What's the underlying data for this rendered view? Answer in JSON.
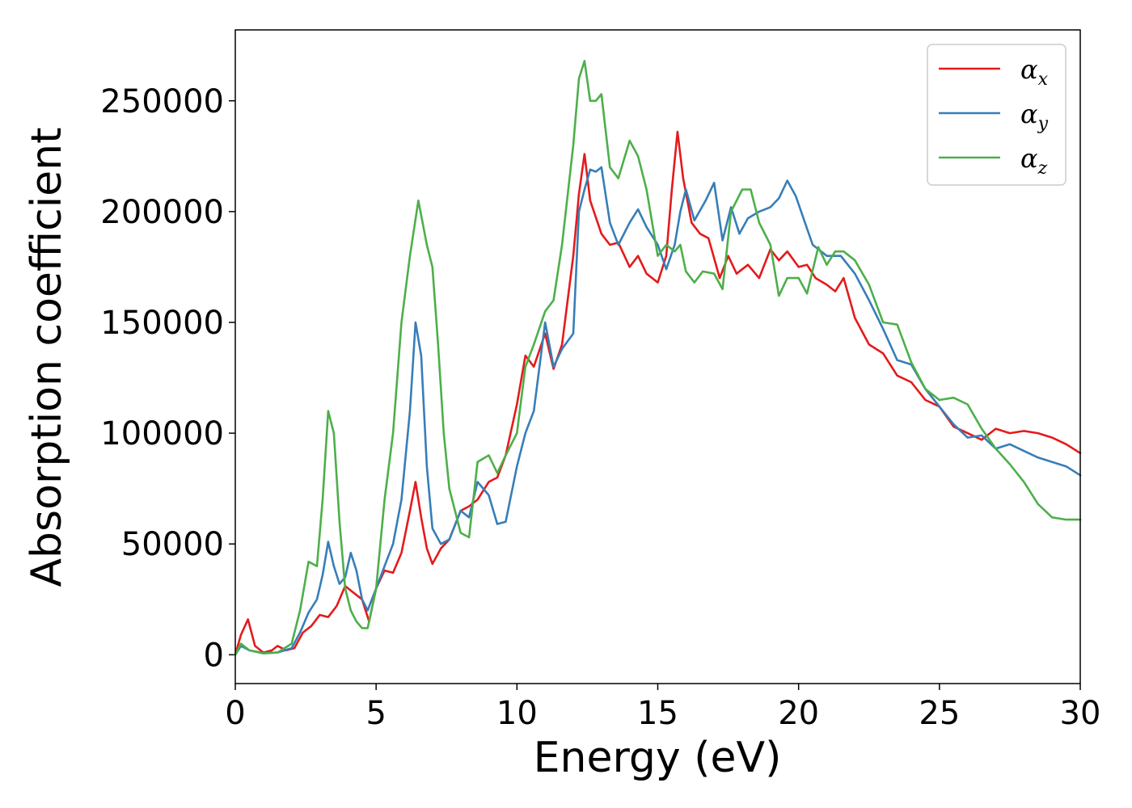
{
  "chart_data": {
    "type": "line",
    "title": "",
    "xlabel": "Energy (eV)",
    "ylabel": "Absorption coefficient",
    "xlim": [
      0,
      30
    ],
    "ylim": [
      -13000,
      282000
    ],
    "xticks": [
      0,
      5,
      10,
      15,
      20,
      25,
      30
    ],
    "yticks": [
      0,
      50000,
      100000,
      150000,
      200000,
      250000
    ],
    "grid": false,
    "legend": {
      "position": "top-right"
    },
    "series": [
      {
        "name": "αx",
        "symbol": "α",
        "subscript": "x",
        "color": "#e41a1c",
        "x": [
          0,
          0.2,
          0.45,
          0.7,
          1.0,
          1.3,
          1.5,
          1.8,
          2.1,
          2.4,
          2.7,
          3.0,
          3.3,
          3.6,
          3.9,
          4.2,
          4.5,
          4.75,
          5.0,
          5.3,
          5.6,
          5.9,
          6.2,
          6.4,
          6.6,
          6.8,
          7.0,
          7.3,
          7.6,
          8.0,
          8.3,
          8.6,
          9.0,
          9.3,
          9.6,
          10.0,
          10.3,
          10.6,
          11.0,
          11.3,
          11.6,
          12.0,
          12.2,
          12.4,
          12.6,
          13.0,
          13.3,
          13.6,
          14.0,
          14.3,
          14.6,
          15.0,
          15.3,
          15.5,
          15.7,
          15.9,
          16.2,
          16.5,
          16.8,
          17.2,
          17.5,
          17.8,
          18.2,
          18.6,
          19.0,
          19.3,
          19.6,
          20.0,
          20.3,
          20.6,
          21.0,
          21.3,
          21.6,
          22.0,
          22.5,
          23.0,
          23.5,
          24.0,
          24.5,
          25.0,
          25.5,
          26.0,
          26.5,
          27.0,
          27.5,
          28.0,
          28.5,
          29.0,
          29.5,
          30.0
        ],
        "y": [
          0,
          9000,
          16000,
          4000,
          1000,
          2000,
          4000,
          2000,
          3000,
          10000,
          13000,
          18000,
          17000,
          22000,
          31000,
          28000,
          25000,
          15000,
          30000,
          38000,
          37000,
          46000,
          65000,
          78000,
          62000,
          48000,
          41000,
          48000,
          52000,
          65000,
          67000,
          70000,
          78000,
          80000,
          90000,
          113000,
          135000,
          130000,
          145000,
          129000,
          140000,
          180000,
          208000,
          226000,
          205000,
          190000,
          185000,
          186000,
          175000,
          180000,
          172000,
          168000,
          180000,
          210000,
          236000,
          215000,
          195000,
          190000,
          188000,
          170000,
          180000,
          172000,
          176000,
          170000,
          183000,
          178000,
          182000,
          175000,
          176000,
          170000,
          167000,
          164000,
          170000,
          152000,
          140000,
          136000,
          126000,
          123000,
          115000,
          112000,
          103000,
          100000,
          97000,
          102000,
          100000,
          101000,
          100000,
          98000,
          95000,
          91000
        ]
      },
      {
        "name": "αy",
        "symbol": "α",
        "subscript": "y",
        "color": "#377eb8",
        "x": [
          0,
          0.2,
          0.5,
          1.0,
          1.5,
          2.0,
          2.3,
          2.6,
          2.9,
          3.1,
          3.3,
          3.5,
          3.7,
          3.9,
          4.1,
          4.3,
          4.5,
          4.7,
          5.0,
          5.3,
          5.6,
          5.9,
          6.2,
          6.4,
          6.6,
          6.8,
          7.0,
          7.3,
          7.6,
          8.0,
          8.3,
          8.6,
          9.0,
          9.3,
          9.6,
          10.0,
          10.3,
          10.6,
          11.0,
          11.3,
          11.6,
          12.0,
          12.2,
          12.4,
          12.6,
          12.8,
          13.0,
          13.3,
          13.6,
          14.0,
          14.3,
          14.6,
          15.0,
          15.3,
          15.6,
          15.8,
          16.0,
          16.3,
          16.7,
          17.0,
          17.3,
          17.6,
          17.9,
          18.2,
          18.6,
          19.0,
          19.3,
          19.6,
          19.9,
          20.2,
          20.5,
          21.0,
          21.5,
          22.0,
          22.5,
          23.0,
          23.5,
          24.0,
          24.5,
          25.0,
          25.5,
          26.0,
          26.5,
          27.0,
          27.5,
          28.0,
          28.5,
          29.0,
          29.5,
          30.0
        ],
        "y": [
          0,
          4000,
          2000,
          800,
          1000,
          3000,
          10000,
          19000,
          25000,
          36000,
          51000,
          40000,
          32000,
          35000,
          46000,
          38000,
          25000,
          20000,
          30000,
          40000,
          50000,
          70000,
          110000,
          150000,
          135000,
          85000,
          57000,
          50000,
          52000,
          65000,
          62000,
          78000,
          72000,
          59000,
          60000,
          85000,
          100000,
          110000,
          150000,
          130000,
          138000,
          145000,
          200000,
          210000,
          219000,
          218000,
          220000,
          195000,
          185000,
          195000,
          201000,
          193000,
          185000,
          174000,
          185000,
          200000,
          210000,
          196000,
          205000,
          213000,
          187000,
          202000,
          190000,
          197000,
          200000,
          202000,
          206000,
          214000,
          207000,
          196000,
          185000,
          180000,
          180000,
          172000,
          160000,
          147000,
          133000,
          131000,
          120000,
          112000,
          104000,
          98000,
          99000,
          93000,
          95000,
          92000,
          89000,
          87000,
          85000,
          81000
        ]
      },
      {
        "name": "αz",
        "symbol": "α",
        "subscript": "z",
        "color": "#4daf4a",
        "x": [
          0,
          0.2,
          0.5,
          1.0,
          1.5,
          2.0,
          2.3,
          2.6,
          2.9,
          3.1,
          3.3,
          3.5,
          3.7,
          3.9,
          4.1,
          4.3,
          4.5,
          4.7,
          5.0,
          5.3,
          5.6,
          5.9,
          6.2,
          6.5,
          6.8,
          7.0,
          7.2,
          7.4,
          7.6,
          8.0,
          8.3,
          8.6,
          9.0,
          9.3,
          9.6,
          10.0,
          10.3,
          10.6,
          11.0,
          11.3,
          11.6,
          12.0,
          12.2,
          12.4,
          12.6,
          12.8,
          13.0,
          13.3,
          13.6,
          14.0,
          14.3,
          14.6,
          15.0,
          15.3,
          15.6,
          15.8,
          16.0,
          16.3,
          16.6,
          17.0,
          17.3,
          17.6,
          18.0,
          18.3,
          18.6,
          19.0,
          19.3,
          19.6,
          20.0,
          20.3,
          20.7,
          21.0,
          21.3,
          21.6,
          22.0,
          22.5,
          23.0,
          23.5,
          24.0,
          24.5,
          25.0,
          25.5,
          26.0,
          26.5,
          27.0,
          27.5,
          28.0,
          28.5,
          29.0,
          29.5,
          30.0
        ],
        "y": [
          0,
          5000,
          2000,
          600,
          1000,
          5000,
          20000,
          42000,
          40000,
          70000,
          110000,
          100000,
          60000,
          30000,
          20000,
          15000,
          12000,
          12000,
          30000,
          70000,
          100000,
          150000,
          180000,
          205000,
          185000,
          175000,
          140000,
          100000,
          75000,
          55000,
          53000,
          87000,
          90000,
          82000,
          90000,
          100000,
          130000,
          140000,
          155000,
          160000,
          185000,
          230000,
          260000,
          268000,
          250000,
          250000,
          253000,
          220000,
          215000,
          232000,
          225000,
          210000,
          180000,
          185000,
          182000,
          185000,
          173000,
          168000,
          173000,
          172000,
          165000,
          200000,
          210000,
          210000,
          195000,
          185000,
          162000,
          170000,
          170000,
          163000,
          184000,
          176000,
          182000,
          182000,
          178000,
          167000,
          150000,
          149000,
          132000,
          120000,
          115000,
          116000,
          113000,
          102000,
          93000,
          86000,
          78000,
          68000,
          62000,
          61000,
          61000
        ]
      }
    ]
  }
}
